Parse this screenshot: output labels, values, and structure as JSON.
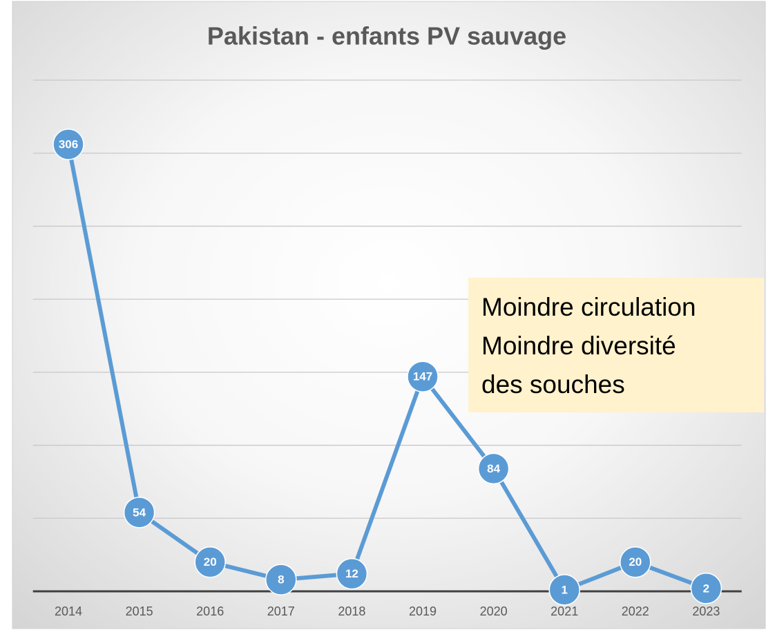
{
  "chart_data": {
    "type": "line",
    "title": "Pakistan - enfants PV sauvage",
    "categories": [
      "2014",
      "2015",
      "2016",
      "2017",
      "2018",
      "2019",
      "2020",
      "2021",
      "2022",
      "2023"
    ],
    "series": [
      {
        "name": "enfants PV sauvage",
        "color": "#5b9bd5",
        "values": [
          306,
          54,
          20,
          8,
          12,
          147,
          84,
          1,
          20,
          2
        ]
      }
    ],
    "ylim": [
      0,
      350
    ],
    "yticks": [
      0,
      50,
      100,
      150,
      200,
      250,
      300,
      350
    ],
    "grid": true,
    "annotation": [
      "Moindre circulation",
      "Moindre diversité",
      "des souches"
    ]
  }
}
